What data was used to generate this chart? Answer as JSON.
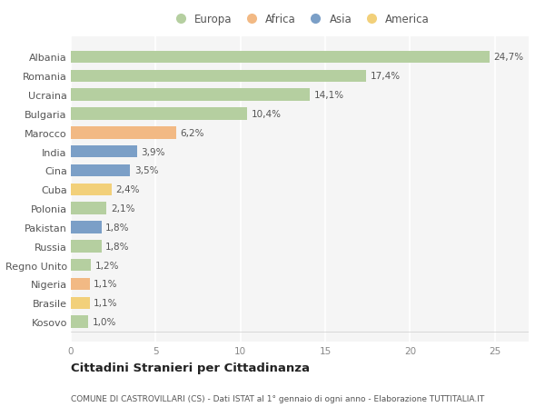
{
  "categories": [
    "Albania",
    "Romania",
    "Ucraina",
    "Bulgaria",
    "Marocco",
    "India",
    "Cina",
    "Cuba",
    "Polonia",
    "Pakistan",
    "Russia",
    "Regno Unito",
    "Nigeria",
    "Brasile",
    "Kosovo"
  ],
  "values": [
    24.7,
    17.4,
    14.1,
    10.4,
    6.2,
    3.9,
    3.5,
    2.4,
    2.1,
    1.8,
    1.8,
    1.2,
    1.1,
    1.1,
    1.0
  ],
  "labels": [
    "24,7%",
    "17,4%",
    "14,1%",
    "10,4%",
    "6,2%",
    "3,9%",
    "3,5%",
    "2,4%",
    "2,1%",
    "1,8%",
    "1,8%",
    "1,2%",
    "1,1%",
    "1,1%",
    "1,0%"
  ],
  "colors": [
    "#b5cfa0",
    "#b5cfa0",
    "#b5cfa0",
    "#b5cfa0",
    "#f2b984",
    "#7b9fc7",
    "#7b9fc7",
    "#f2d07a",
    "#b5cfa0",
    "#7b9fc7",
    "#b5cfa0",
    "#b5cfa0",
    "#f2b984",
    "#f2d07a",
    "#b5cfa0"
  ],
  "legend_labels": [
    "Europa",
    "Africa",
    "Asia",
    "America"
  ],
  "legend_colors": [
    "#b5cfa0",
    "#f2b984",
    "#7b9fc7",
    "#f2d07a"
  ],
  "title": "Cittadini Stranieri per Cittadinanza",
  "subtitle": "COMUNE DI CASTROVILLARI (CS) - Dati ISTAT al 1° gennaio di ogni anno - Elaborazione TUTTITALIA.IT",
  "xlim": [
    0,
    27
  ],
  "xticks": [
    0,
    5,
    10,
    15,
    20,
    25
  ],
  "background_color": "#ffffff",
  "plot_bg_color": "#f5f5f5",
  "grid_color": "#ffffff",
  "bar_height": 0.65,
  "label_fontsize": 7.5,
  "ytick_fontsize": 8.0,
  "xtick_fontsize": 7.5
}
